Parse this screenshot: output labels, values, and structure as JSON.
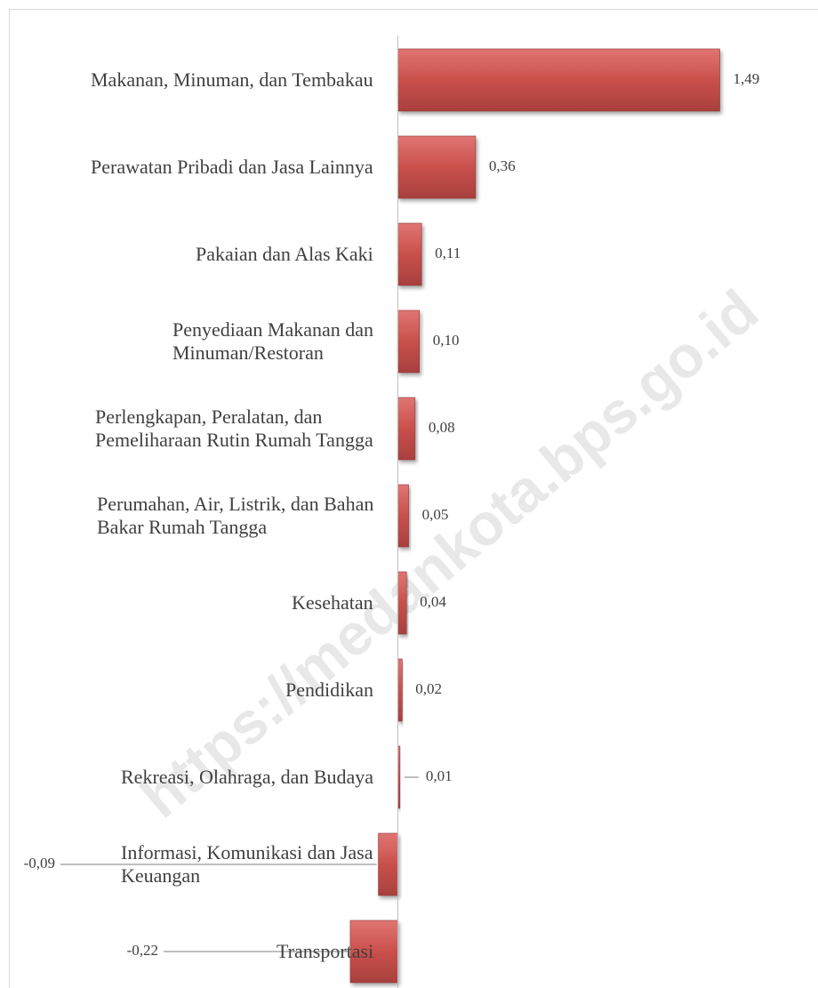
{
  "chart_data": {
    "type": "bar",
    "orientation": "horizontal",
    "categories": [
      "Makanan, Minuman, dan Tembakau",
      "Perawatan Pribadi dan Jasa Lainnya",
      "Pakaian dan Alas Kaki",
      "Penyediaan Makanan dan\nMinuman/Restoran",
      "Perlengkapan, Peralatan, dan\nPemeliharaan Rutin Rumah Tangga",
      "Perumahan, Air, Listrik, dan Bahan\nBakar Rumah Tangga",
      "Kesehatan",
      "Pendidikan",
      "Rekreasi, Olahraga, dan Budaya",
      "Informasi, Komunikasi dan Jasa\nKeuangan",
      "Transportasi"
    ],
    "values": [
      1.49,
      0.36,
      0.11,
      0.1,
      0.08,
      0.05,
      0.04,
      0.02,
      0.01,
      -0.09,
      -0.22
    ],
    "value_labels": [
      "1,49",
      "0,36",
      "0,11",
      "0,10",
      "0,08",
      "0,05",
      "0,04",
      "0,02",
      "0,01",
      "-0,09",
      "-0,22"
    ],
    "color": "#c0504d",
    "xlim": [
      -1.8,
      1.85
    ],
    "watermark": "https://medankota.bps.go.id"
  }
}
